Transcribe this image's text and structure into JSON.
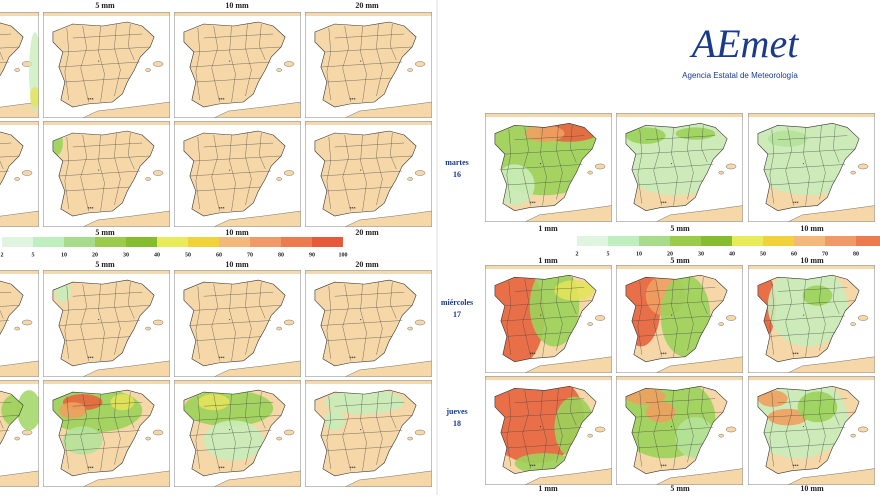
{
  "logo": {
    "name": "AEmet",
    "subtitle": "Agencia Estatal de Meteorología"
  },
  "left": {
    "top_headers": [
      "5 mm",
      "10 mm",
      "20 mm"
    ],
    "mid_headers": [
      "5 mm",
      "10 mm",
      "20 mm"
    ],
    "legend": [
      2,
      5,
      10,
      20,
      30,
      40,
      50,
      60,
      70,
      80,
      90,
      100
    ],
    "lower_headers": [
      "5 mm",
      "10 mm",
      "20 mm"
    ]
  },
  "right": {
    "days": [
      {
        "name": "martes",
        "num": "16"
      },
      {
        "name": "miércoles",
        "num": "17"
      },
      {
        "name": "jueves",
        "num": "18"
      }
    ],
    "headers_1": [
      "1 mm",
      "5 mm",
      "10 mm"
    ],
    "legend": [
      2,
      5,
      10,
      20,
      30,
      40,
      50,
      60,
      70,
      80,
      90
    ],
    "headers_2": [
      "1 mm",
      "5 mm",
      "10 mm"
    ],
    "headers_3": [
      "1 mm",
      "5 mm",
      "10 mm"
    ]
  }
}
